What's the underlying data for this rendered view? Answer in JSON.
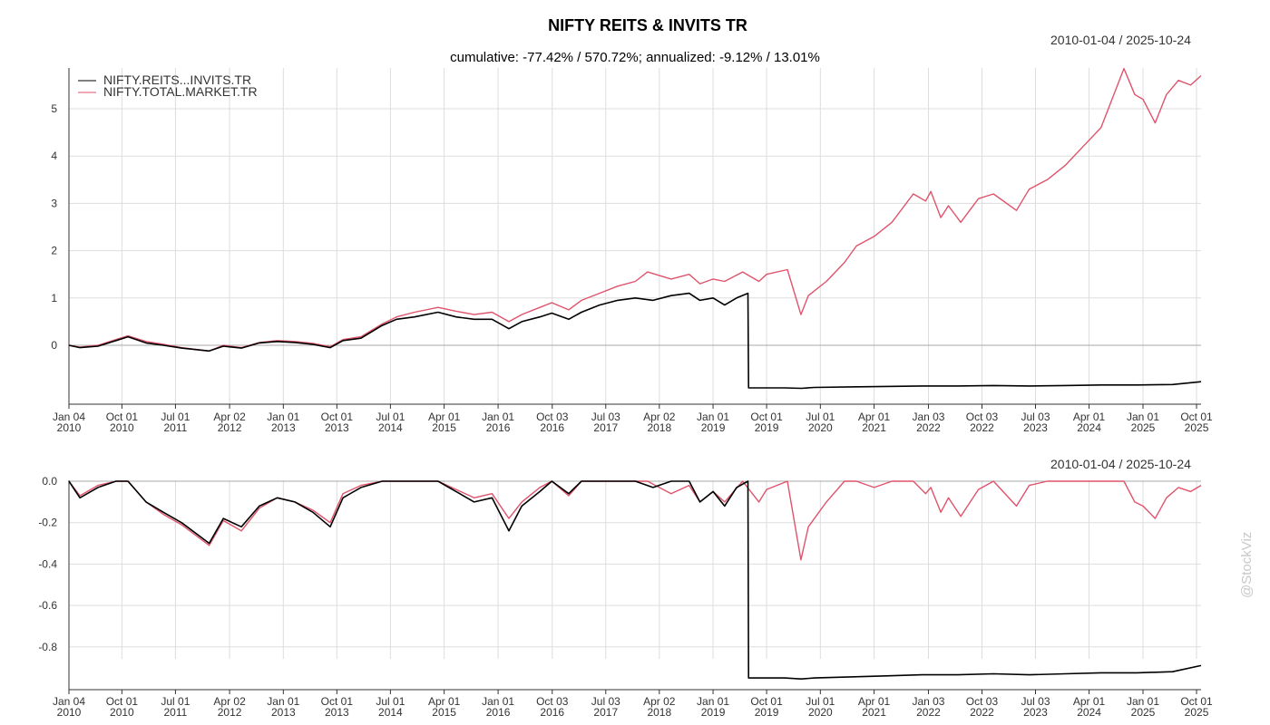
{
  "title": "NIFTY REITS & INVITS TR",
  "subtitle": "cumulative: -77.42% / 570.72%; annualized: -9.12% / 13.01%",
  "date_range_top": "2010-01-04 / 2025-10-24",
  "date_range_bottom": "2010-01-04 / 2025-10-24",
  "watermark": "@StockViz",
  "colors": {
    "reits": "#000000",
    "market": "#df536b",
    "grid": "#dddddd"
  },
  "chart_data": [
    {
      "type": "line",
      "panel": "cumulative",
      "x_ticks": [
        {
          "date": "2010-01-04",
          "line1": "Jan 04",
          "line2": "2010"
        },
        {
          "date": "2010-10-01",
          "line1": "Oct 01",
          "line2": "2010"
        },
        {
          "date": "2011-07-01",
          "line1": "Jul 01",
          "line2": "2011"
        },
        {
          "date": "2012-04-02",
          "line1": "Apr 02",
          "line2": "2012"
        },
        {
          "date": "2013-01-01",
          "line1": "Jan 01",
          "line2": "2013"
        },
        {
          "date": "2013-10-01",
          "line1": "Oct 01",
          "line2": "2013"
        },
        {
          "date": "2014-07-01",
          "line1": "Jul 01",
          "line2": "2014"
        },
        {
          "date": "2015-04-01",
          "line1": "Apr 01",
          "line2": "2015"
        },
        {
          "date": "2016-01-01",
          "line1": "Jan 01",
          "line2": "2016"
        },
        {
          "date": "2016-10-03",
          "line1": "Oct 03",
          "line2": "2016"
        },
        {
          "date": "2017-07-03",
          "line1": "Jul 03",
          "line2": "2017"
        },
        {
          "date": "2018-04-02",
          "line1": "Apr 02",
          "line2": "2018"
        },
        {
          "date": "2019-01-01",
          "line1": "Jan 01",
          "line2": "2019"
        },
        {
          "date": "2019-10-01",
          "line1": "Oct 01",
          "line2": "2019"
        },
        {
          "date": "2020-07-01",
          "line1": "Jul 01",
          "line2": "2020"
        },
        {
          "date": "2021-04-01",
          "line1": "Apr 01",
          "line2": "2021"
        },
        {
          "date": "2022-01-03",
          "line1": "Jan 03",
          "line2": "2022"
        },
        {
          "date": "2022-10-03",
          "line1": "Oct 03",
          "line2": "2022"
        },
        {
          "date": "2023-07-03",
          "line1": "Jul 03",
          "line2": "2023"
        },
        {
          "date": "2024-04-01",
          "line1": "Apr 01",
          "line2": "2024"
        },
        {
          "date": "2025-01-01",
          "line1": "Jan 01",
          "line2": "2025"
        },
        {
          "date": "2025-10-01",
          "line1": "Oct 01",
          "line2": "2025"
        }
      ],
      "y_ticks": [
        "0",
        "1",
        "2",
        "3",
        "4",
        "5"
      ],
      "ylim": [
        -0.9,
        5.9
      ],
      "legend": "top-left",
      "grid": true,
      "series": [
        {
          "name": "NIFTY.REITS...INVITS.TR",
          "x": [
            "2010-01-04",
            "2010-03-01",
            "2010-06-01",
            "2010-09-01",
            "2010-11-01",
            "2011-02-01",
            "2011-05-01",
            "2011-08-01",
            "2011-12-20",
            "2012-03-01",
            "2012-06-01",
            "2012-09-01",
            "2012-12-01",
            "2013-03-01",
            "2013-06-01",
            "2013-08-28",
            "2013-11-01",
            "2014-02-01",
            "2014-05-20",
            "2014-08-01",
            "2014-11-01",
            "2015-03-01",
            "2015-06-01",
            "2015-09-01",
            "2015-12-01",
            "2016-02-25",
            "2016-05-01",
            "2016-08-01",
            "2016-10-01",
            "2016-12-26",
            "2017-03-01",
            "2017-06-01",
            "2017-09-01",
            "2017-12-01",
            "2018-03-01",
            "2018-06-01",
            "2018-09-01",
            "2018-10-26",
            "2019-01-01",
            "2019-03-01",
            "2019-05-01",
            "2019-06-28",
            "2019-07-01",
            "2019-10-01",
            "2020-01-01",
            "2020-03-25",
            "2020-06-01",
            "2020-12-01",
            "2021-06-01",
            "2021-12-01",
            "2022-06-01",
            "2022-12-01",
            "2023-06-01",
            "2023-12-01",
            "2024-06-01",
            "2024-12-01",
            "2025-06-01",
            "2025-10-24"
          ],
          "values": [
            0.0,
            -0.05,
            -0.02,
            0.1,
            0.18,
            0.05,
            0.0,
            -0.06,
            -0.12,
            -0.02,
            -0.06,
            0.05,
            0.08,
            0.06,
            0.02,
            -0.05,
            0.1,
            0.15,
            0.42,
            0.55,
            0.6,
            0.7,
            0.6,
            0.55,
            0.55,
            0.35,
            0.5,
            0.6,
            0.68,
            0.55,
            0.7,
            0.85,
            0.95,
            1.0,
            0.95,
            1.05,
            1.1,
            0.95,
            1.0,
            0.85,
            1.0,
            1.1,
            -0.9,
            -0.9,
            -0.9,
            -0.91,
            -0.89,
            -0.88,
            -0.87,
            -0.86,
            -0.86,
            -0.85,
            -0.86,
            -0.85,
            -0.84,
            -0.84,
            -0.83,
            -0.77
          ]
        },
        {
          "name": "NIFTY.TOTAL.MARKET.TR",
          "x": [
            "2010-01-04",
            "2010-03-01",
            "2010-06-01",
            "2010-09-01",
            "2010-11-01",
            "2011-02-01",
            "2011-05-01",
            "2011-08-01",
            "2011-12-20",
            "2012-03-01",
            "2012-06-01",
            "2012-09-01",
            "2012-12-01",
            "2013-03-01",
            "2013-06-01",
            "2013-08-28",
            "2013-11-01",
            "2014-02-01",
            "2014-05-20",
            "2014-08-01",
            "2014-11-01",
            "2015-03-01",
            "2015-06-01",
            "2015-09-01",
            "2015-12-01",
            "2016-02-25",
            "2016-05-01",
            "2016-08-01",
            "2016-10-01",
            "2016-12-26",
            "2017-03-01",
            "2017-06-01",
            "2017-09-01",
            "2017-12-01",
            "2018-02-01",
            "2018-06-01",
            "2018-09-01",
            "2018-10-26",
            "2019-01-01",
            "2019-03-01",
            "2019-06-01",
            "2019-08-23",
            "2019-10-01",
            "2020-01-15",
            "2020-03-24",
            "2020-05-01",
            "2020-08-01",
            "2020-11-01",
            "2021-01-01",
            "2021-04-01",
            "2021-07-01",
            "2021-10-18",
            "2021-12-20",
            "2022-01-15",
            "2022-03-07",
            "2022-04-15",
            "2022-06-17",
            "2022-09-15",
            "2022-12-01",
            "2023-03-28",
            "2023-06-01",
            "2023-09-01",
            "2023-12-01",
            "2024-03-01",
            "2024-06-01",
            "2024-09-26",
            "2024-11-20",
            "2025-01-01",
            "2025-03-04",
            "2025-05-01",
            "2025-07-01",
            "2025-09-01",
            "2025-10-24"
          ],
          "values": [
            0.0,
            -0.04,
            0.0,
            0.12,
            0.2,
            0.08,
            0.02,
            -0.05,
            -0.12,
            0.0,
            -0.05,
            0.06,
            0.1,
            0.08,
            0.04,
            -0.03,
            0.12,
            0.18,
            0.45,
            0.6,
            0.7,
            0.8,
            0.72,
            0.65,
            0.7,
            0.5,
            0.65,
            0.8,
            0.9,
            0.75,
            0.95,
            1.1,
            1.25,
            1.35,
            1.55,
            1.4,
            1.5,
            1.3,
            1.4,
            1.35,
            1.55,
            1.35,
            1.5,
            1.6,
            0.65,
            1.05,
            1.35,
            1.75,
            2.1,
            2.3,
            2.6,
            3.2,
            3.05,
            3.25,
            2.7,
            2.95,
            2.6,
            3.1,
            3.2,
            2.85,
            3.3,
            3.5,
            3.8,
            4.2,
            4.6,
            5.85,
            5.3,
            5.2,
            4.7,
            5.3,
            5.6,
            5.5,
            5.7
          ]
        }
      ]
    },
    {
      "type": "line",
      "panel": "drawdown",
      "x_ticks": [
        {
          "date": "2010-01-04",
          "line1": "Jan 04",
          "line2": "2010"
        },
        {
          "date": "2010-10-01",
          "line1": "Oct 01",
          "line2": "2010"
        },
        {
          "date": "2011-07-01",
          "line1": "Jul 01",
          "line2": "2011"
        },
        {
          "date": "2012-04-02",
          "line1": "Apr 02",
          "line2": "2012"
        },
        {
          "date": "2013-01-01",
          "line1": "Jan 01",
          "line2": "2013"
        },
        {
          "date": "2013-10-01",
          "line1": "Oct 01",
          "line2": "2013"
        },
        {
          "date": "2014-07-01",
          "line1": "Jul 01",
          "line2": "2014"
        },
        {
          "date": "2015-04-01",
          "line1": "Apr 01",
          "line2": "2015"
        },
        {
          "date": "2016-01-01",
          "line1": "Jan 01",
          "line2": "2016"
        },
        {
          "date": "2016-10-03",
          "line1": "Oct 03",
          "line2": "2016"
        },
        {
          "date": "2017-07-03",
          "line1": "Jul 03",
          "line2": "2017"
        },
        {
          "date": "2018-04-02",
          "line1": "Apr 02",
          "line2": "2018"
        },
        {
          "date": "2019-01-01",
          "line1": "Jan 01",
          "line2": "2019"
        },
        {
          "date": "2019-10-01",
          "line1": "Oct 01",
          "line2": "2019"
        },
        {
          "date": "2020-07-01",
          "line1": "Jul 01",
          "line2": "2020"
        },
        {
          "date": "2021-04-01",
          "line1": "Apr 01",
          "line2": "2021"
        },
        {
          "date": "2022-01-03",
          "line1": "Jan 03",
          "line2": "2022"
        },
        {
          "date": "2022-10-03",
          "line1": "Oct 03",
          "line2": "2022"
        },
        {
          "date": "2023-07-03",
          "line1": "Jul 03",
          "line2": "2023"
        },
        {
          "date": "2024-04-01",
          "line1": "Apr 01",
          "line2": "2024"
        },
        {
          "date": "2025-01-01",
          "line1": "Jan 01",
          "line2": "2025"
        },
        {
          "date": "2025-10-01",
          "line1": "Oct 01",
          "line2": "2025"
        }
      ],
      "y_ticks": [
        "0.0",
        "-0.2",
        "-0.4",
        "-0.6",
        "-0.8"
      ],
      "ylim": [
        -0.96,
        0.0
      ],
      "grid": true,
      "series": [
        {
          "name": "NIFTY.REITS...INVITS.TR",
          "x": [
            "2010-01-04",
            "2010-03-01",
            "2010-06-01",
            "2010-09-01",
            "2010-11-01",
            "2011-02-01",
            "2011-05-01",
            "2011-08-01",
            "2011-12-20",
            "2012-03-01",
            "2012-06-01",
            "2012-09-01",
            "2012-12-01",
            "2013-03-01",
            "2013-06-01",
            "2013-08-28",
            "2013-11-01",
            "2014-02-01",
            "2014-05-20",
            "2014-08-01",
            "2014-11-01",
            "2015-03-01",
            "2015-06-01",
            "2015-09-01",
            "2015-12-01",
            "2016-02-25",
            "2016-05-01",
            "2016-08-01",
            "2016-10-01",
            "2016-12-26",
            "2017-03-01",
            "2017-06-01",
            "2017-09-01",
            "2017-12-01",
            "2018-03-01",
            "2018-06-01",
            "2018-09-01",
            "2018-10-26",
            "2019-01-01",
            "2019-03-01",
            "2019-05-01",
            "2019-06-28",
            "2019-07-01",
            "2019-10-01",
            "2020-01-01",
            "2020-03-25",
            "2020-06-01",
            "2020-12-01",
            "2021-06-01",
            "2021-12-01",
            "2022-06-01",
            "2022-12-01",
            "2023-06-01",
            "2023-12-01",
            "2024-06-01",
            "2024-12-01",
            "2025-06-01",
            "2025-10-24"
          ],
          "values": [
            0.0,
            -0.08,
            -0.03,
            0.0,
            0.0,
            -0.1,
            -0.15,
            -0.2,
            -0.3,
            -0.18,
            -0.22,
            -0.12,
            -0.08,
            -0.1,
            -0.15,
            -0.22,
            -0.08,
            -0.03,
            0.0,
            0.0,
            0.0,
            0.0,
            -0.05,
            -0.1,
            -0.08,
            -0.24,
            -0.12,
            -0.05,
            0.0,
            -0.06,
            0.0,
            0.0,
            0.0,
            0.0,
            -0.03,
            0.0,
            0.0,
            -0.1,
            -0.05,
            -0.12,
            -0.03,
            0.0,
            -0.95,
            -0.95,
            -0.95,
            -0.955,
            -0.95,
            -0.945,
            -0.94,
            -0.935,
            -0.935,
            -0.93,
            -0.935,
            -0.93,
            -0.925,
            -0.925,
            -0.92,
            -0.89
          ]
        },
        {
          "name": "NIFTY.TOTAL.MARKET.TR",
          "x": [
            "2010-01-04",
            "2010-03-01",
            "2010-06-01",
            "2010-09-01",
            "2010-11-01",
            "2011-02-01",
            "2011-05-01",
            "2011-08-01",
            "2011-12-20",
            "2012-03-01",
            "2012-06-01",
            "2012-09-01",
            "2012-12-01",
            "2013-03-01",
            "2013-06-01",
            "2013-08-28",
            "2013-11-01",
            "2014-02-01",
            "2014-05-20",
            "2014-08-01",
            "2014-11-01",
            "2015-03-01",
            "2015-06-01",
            "2015-09-01",
            "2015-12-01",
            "2016-02-25",
            "2016-05-01",
            "2016-08-01",
            "2016-10-01",
            "2016-12-26",
            "2017-03-01",
            "2017-06-01",
            "2017-09-01",
            "2017-12-01",
            "2018-02-01",
            "2018-06-01",
            "2018-09-01",
            "2018-10-26",
            "2019-01-01",
            "2019-03-01",
            "2019-06-01",
            "2019-08-23",
            "2019-10-01",
            "2020-01-15",
            "2020-03-24",
            "2020-05-01",
            "2020-08-01",
            "2020-11-01",
            "2021-01-01",
            "2021-04-01",
            "2021-07-01",
            "2021-10-18",
            "2021-12-20",
            "2022-01-15",
            "2022-03-07",
            "2022-04-15",
            "2022-06-17",
            "2022-09-15",
            "2022-12-01",
            "2023-03-28",
            "2023-06-01",
            "2023-09-01",
            "2023-12-01",
            "2024-03-01",
            "2024-06-01",
            "2024-09-26",
            "2024-11-20",
            "2025-01-01",
            "2025-03-04",
            "2025-05-01",
            "2025-07-01",
            "2025-09-01",
            "2025-10-24"
          ],
          "values": [
            0.0,
            -0.07,
            -0.02,
            0.0,
            0.0,
            -0.1,
            -0.16,
            -0.21,
            -0.31,
            -0.19,
            -0.24,
            -0.13,
            -0.08,
            -0.1,
            -0.14,
            -0.2,
            -0.06,
            -0.02,
            0.0,
            0.0,
            0.0,
            0.0,
            -0.04,
            -0.08,
            -0.06,
            -0.18,
            -0.1,
            -0.03,
            0.0,
            -0.07,
            0.0,
            0.0,
            0.0,
            0.0,
            0.0,
            -0.06,
            -0.02,
            -0.1,
            -0.05,
            -0.1,
            0.0,
            -0.1,
            -0.04,
            0.0,
            -0.38,
            -0.22,
            -0.1,
            0.0,
            0.0,
            -0.03,
            0.0,
            0.0,
            -0.06,
            -0.03,
            -0.15,
            -0.08,
            -0.17,
            -0.04,
            0.0,
            -0.12,
            -0.02,
            0.0,
            0.0,
            0.0,
            0.0,
            0.0,
            -0.1,
            -0.12,
            -0.18,
            -0.08,
            -0.03,
            -0.05,
            -0.02
          ]
        }
      ]
    }
  ]
}
